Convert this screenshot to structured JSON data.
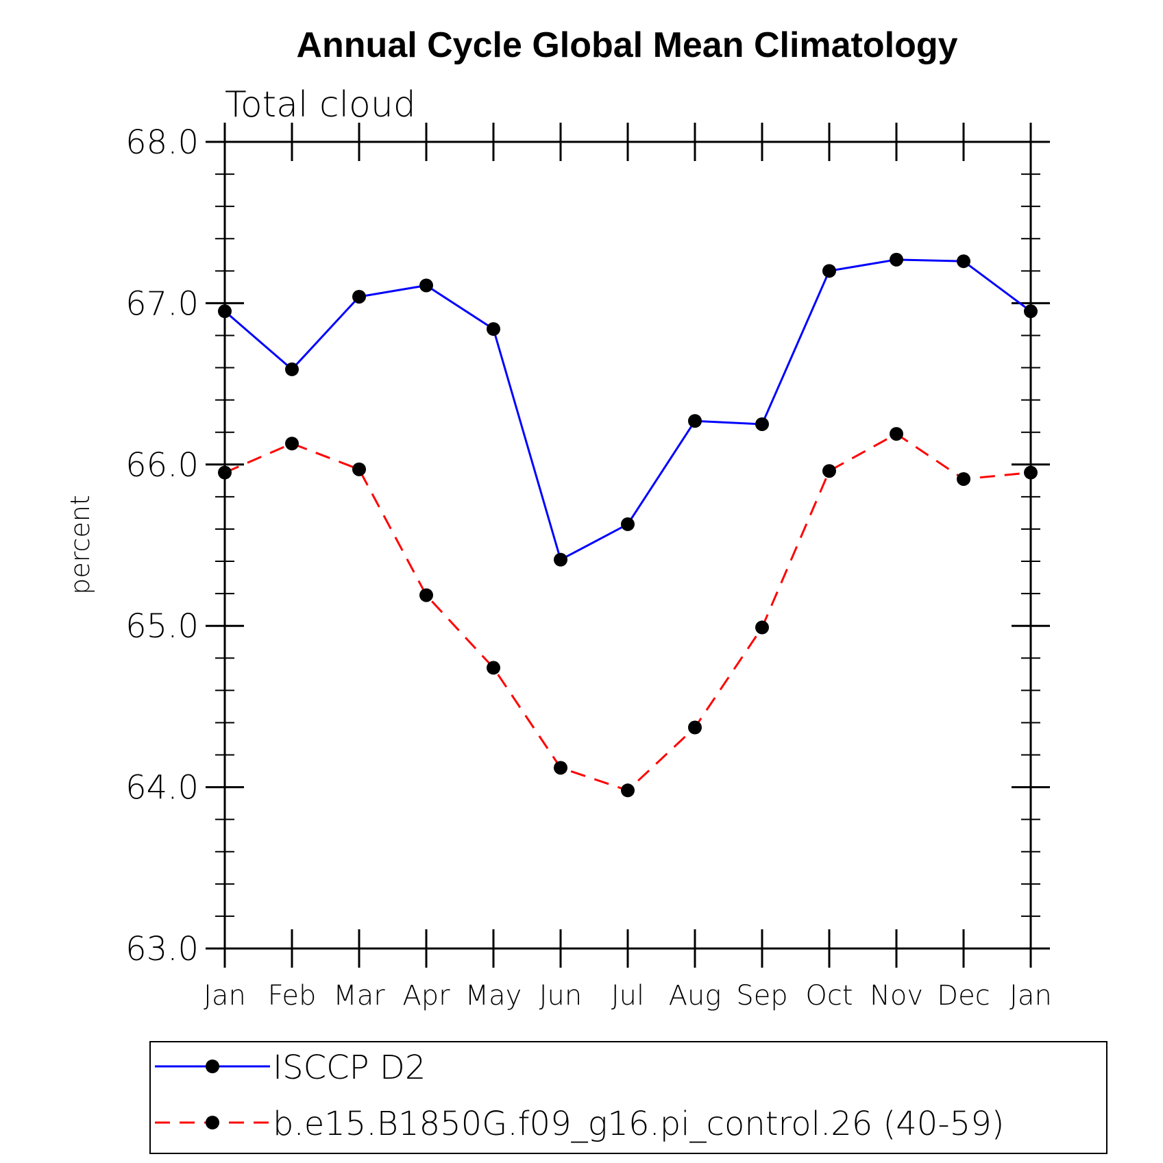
{
  "chart_data": {
    "type": "line",
    "title": "Annual Cycle Global Mean Climatology",
    "subtitle": "Total cloud",
    "ylabel": "percent",
    "xlabel": "",
    "categories": [
      "Jan",
      "Feb",
      "Mar",
      "Apr",
      "May",
      "Jun",
      "Jul",
      "Aug",
      "Sep",
      "Oct",
      "Nov",
      "Dec",
      "Jan"
    ],
    "ylim": [
      63.0,
      68.0
    ],
    "yticks": [
      "63.0",
      "64.0",
      "65.0",
      "66.0",
      "67.0",
      "68.0"
    ],
    "legend_position": "bottom",
    "series": [
      {
        "name": "ISCCP D2",
        "color": "#0000ff",
        "dash": "solid",
        "marker": "filled-circle",
        "values": [
          66.95,
          66.59,
          67.04,
          67.11,
          66.84,
          65.41,
          65.63,
          66.27,
          66.25,
          67.2,
          67.27,
          67.26,
          66.95
        ]
      },
      {
        "name": "b.e15.B1850G.f09_g16.pi_control.26 (40-59)",
        "color": "#ff0000",
        "dash": "dashed",
        "marker": "filled-circle",
        "values": [
          65.95,
          66.13,
          65.97,
          65.19,
          64.74,
          64.12,
          63.98,
          64.37,
          64.99,
          65.96,
          66.19,
          65.91,
          65.95
        ]
      }
    ]
  }
}
